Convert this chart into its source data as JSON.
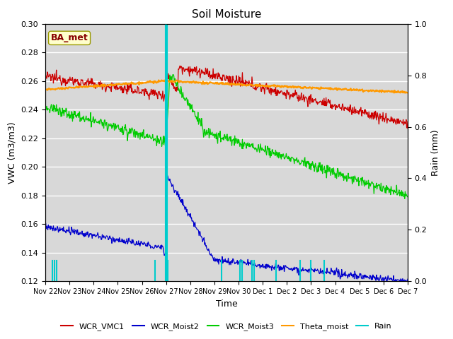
{
  "title": "Soil Moisture",
  "ylabel_left": "VWC (m3/m3)",
  "ylabel_right": "Rain (mm)",
  "xlabel": "Time",
  "ylim_left": [
    0.12,
    0.3
  ],
  "ylim_right": [
    0.0,
    1.0
  ],
  "annotation_label": "BA_met",
  "plot_bg_color": "#d8d8d8",
  "fig_bg_color": "#ffffff",
  "grid_color": "#f0f0f0",
  "line_colors": {
    "WCR_VMC1": "#cc0000",
    "WCR_Moist2": "#0000cc",
    "WCR_Moist3": "#00cc00",
    "Theta_moist": "#ff9900",
    "Rain": "#00cccc"
  },
  "x_tick_labels": [
    "Nov 22",
    "Nov 23",
    "Nov 24",
    "Nov 25",
    "Nov 26",
    "Nov 27",
    "Nov 28",
    "Nov 29",
    "Nov 30",
    "Dec 1",
    "Dec 2",
    "Dec 3",
    "Dec 4",
    "Dec 5",
    "Dec 6",
    "Dec 7"
  ],
  "rain_events_small": [
    0.3,
    0.38,
    0.46,
    4.55,
    5.0,
    5.08,
    7.3,
    8.05,
    8.15,
    8.55,
    8.65,
    9.55,
    10.55,
    11.0,
    11.55
  ],
  "rain_event_big": 5.0,
  "n_days": 15,
  "rain_day": 5.0
}
